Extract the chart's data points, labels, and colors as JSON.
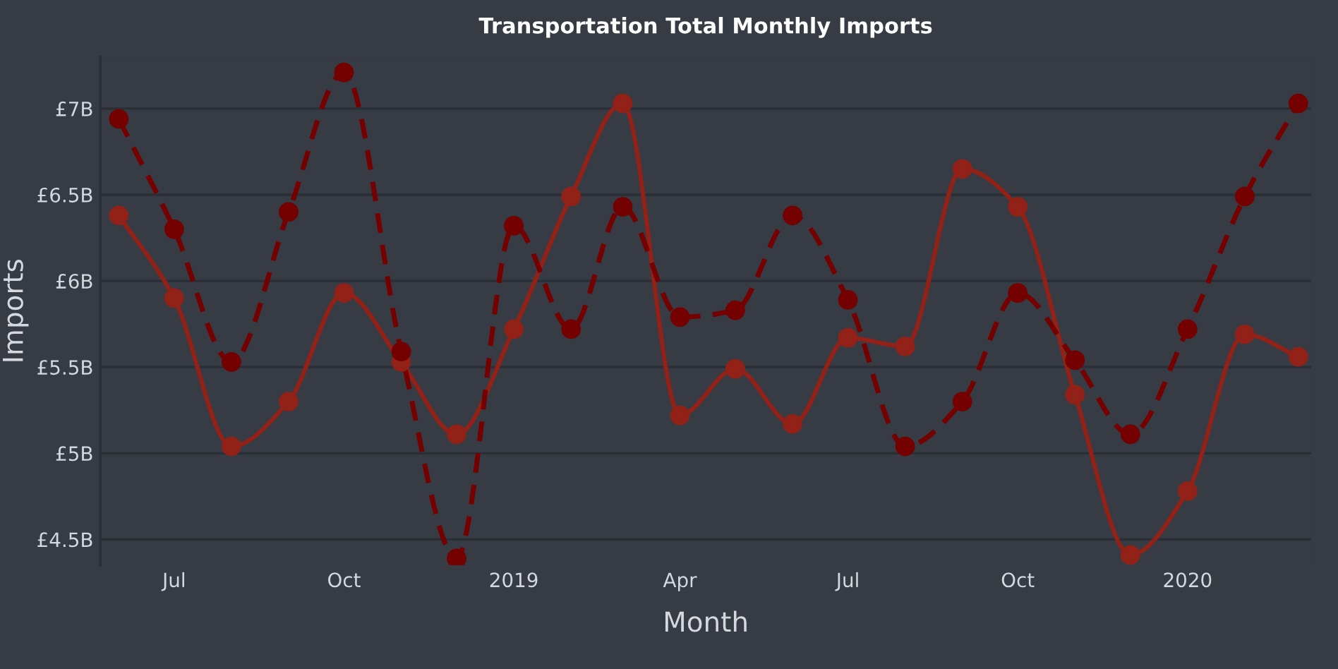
{
  "chart_data": {
    "type": "line",
    "title": "Transportation Total Monthly Imports",
    "xlabel": "Month",
    "ylabel": "Imports",
    "x": [
      "2018-06",
      "2018-07",
      "2018-08",
      "2018-09",
      "2018-10",
      "2018-11",
      "2018-12",
      "2019-01",
      "2019-02",
      "2019-03",
      "2019-04",
      "2019-05",
      "2019-06",
      "2019-07",
      "2019-08",
      "2019-09",
      "2019-10",
      "2019-11",
      "2019-12",
      "2020-01",
      "2020-02",
      "2020-03"
    ],
    "series": [
      {
        "color": "#922118",
        "line_style": "solid",
        "values": [
          6.38,
          5.9,
          5.04,
          5.3,
          5.93,
          5.53,
          5.11,
          5.72,
          6.49,
          7.03,
          5.22,
          5.49,
          5.17,
          5.67,
          5.62,
          6.65,
          6.43,
          5.34,
          4.41,
          4.78,
          5.69,
          5.56
        ]
      },
      {
        "color": "#740000",
        "line_style": "dashed",
        "values": [
          6.94,
          6.3,
          5.53,
          6.4,
          7.21,
          5.59,
          4.39,
          6.32,
          5.72,
          6.43,
          5.79,
          5.83,
          6.38,
          5.89,
          5.04,
          5.3,
          5.93,
          5.54,
          5.11,
          5.72,
          6.49,
          7.03
        ]
      }
    ],
    "xlim": [
      "2018-05-22",
      "2020-03-08"
    ],
    "xticks": [
      {
        "value": "2018-07-01",
        "label": "Jul"
      },
      {
        "value": "2018-10-01",
        "label": "Oct"
      },
      {
        "value": "2019-01-01",
        "label": "2019"
      },
      {
        "value": "2019-04-01",
        "label": "Apr"
      },
      {
        "value": "2019-07-01",
        "label": "Jul"
      },
      {
        "value": "2019-10-01",
        "label": "Oct"
      },
      {
        "value": "2020-01-01",
        "label": "2020"
      }
    ],
    "ylim": [
      4.35,
      7.3
    ],
    "yticks": [
      {
        "value": 4.5,
        "label": "£4.5B"
      },
      {
        "value": 5,
        "label": "£5B"
      },
      {
        "value": 5.5,
        "label": "£5.5B"
      },
      {
        "value": 6,
        "label": "£6B"
      },
      {
        "value": 6.5,
        "label": "£6.5B"
      },
      {
        "value": 7,
        "label": "£7B"
      }
    ],
    "grid": "y",
    "marker": "circle",
    "legend": false
  }
}
